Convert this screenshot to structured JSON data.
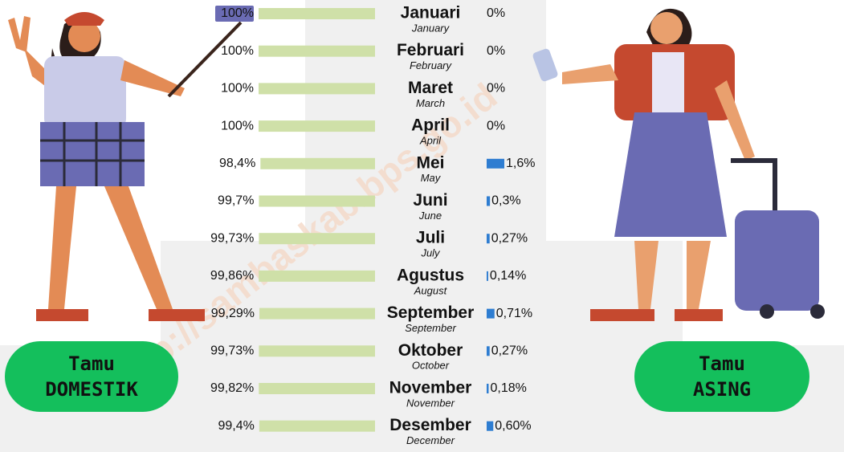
{
  "chart_data": {
    "type": "bar",
    "categories": [
      "Januari",
      "Februari",
      "Maret",
      "April",
      "Mei",
      "Juni",
      "Juli",
      "Agustus",
      "September",
      "Oktober",
      "November",
      "Desember"
    ],
    "category_translations": [
      "January",
      "February",
      "March",
      "April",
      "May",
      "June",
      "July",
      "August",
      "September",
      "October",
      "November",
      "December"
    ],
    "series": [
      {
        "name": "Tamu DOMESTIK",
        "color": "#cfe0a8",
        "values": [
          100,
          100,
          100,
          100,
          98.4,
          99.7,
          99.73,
          99.86,
          99.29,
          99.73,
          99.82,
          99.4
        ],
        "value_labels": [
          "100%",
          "100%",
          "100%",
          "100%",
          "98,4%",
          "99,7%",
          "99,73%",
          "99,86%",
          "99,29%",
          "99,73%",
          "99,82%",
          "99,4%"
        ]
      },
      {
        "name": "Tamu ASING",
        "color": "#2e7dd1",
        "values": [
          0,
          0,
          0,
          0,
          1.6,
          0.3,
          0.27,
          0.14,
          0.71,
          0.27,
          0.18,
          0.6
        ],
        "value_labels": [
          "0%",
          "0%",
          "0%",
          "0%",
          "1,6%",
          "0,3%",
          "0,27%",
          "0,14%",
          "0,71%",
          "0,27%",
          "0,18%",
          "0,60%"
        ]
      }
    ],
    "watermark": "http://sambaskab.bps.go.id"
  }
}
